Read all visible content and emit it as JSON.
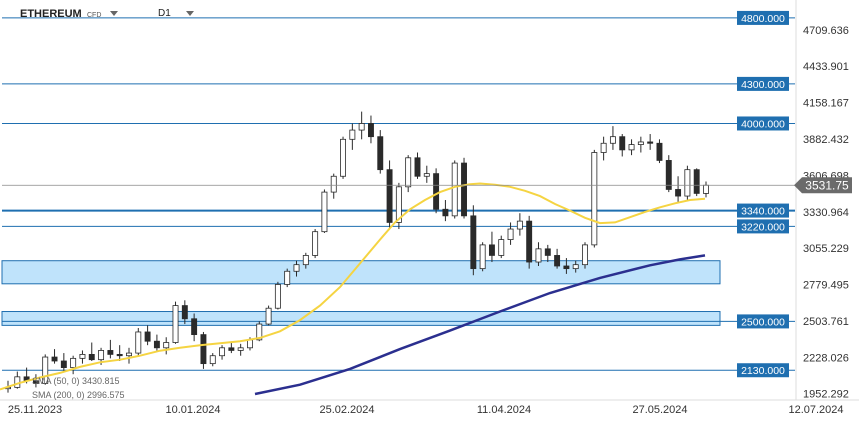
{
  "header": {
    "symbol": "ETHEREUM",
    "symbol_type": "CFD",
    "timeframe": "D1"
  },
  "indicators": [
    {
      "label": "SMA (50, 0) 3430.815",
      "color": "#f5d442"
    },
    {
      "label": "SMA (200, 0) 2996.575",
      "color": "#2b2f8f"
    }
  ],
  "colors": {
    "level_line": "#1f6fb0",
    "zone_fill": "#bfe3fb",
    "zone_border": "#1f6fb0",
    "level_label_bg": "#1f6fb0",
    "candle": "#2a2a2a",
    "price_badge": "#6b6b6b"
  },
  "chart_data": {
    "type": "candlestick",
    "x_ticks": [
      "25.11.2023",
      "10.01.2024",
      "25.02.2024",
      "11.04.2024",
      "27.05.2024",
      "12.07.2024"
    ],
    "y_ticks": [
      4709.636,
      4433.901,
      4158.167,
      3882.432,
      3606.698,
      3330.964,
      3055.229,
      2779.495,
      2503.761,
      2228.026,
      1952.292
    ],
    "ylim": [
      1912,
      4860
    ],
    "current_price": 3531.75,
    "levels": [
      4800,
      4300,
      4000,
      3340,
      3220,
      2500,
      2130
    ],
    "level_labels": [
      "4800.000",
      "4300.000",
      "4000.000",
      "3340.000",
      "3220.000",
      "2500.000",
      "2130.000"
    ],
    "zones": [
      [
        2785,
        2960
      ],
      [
        2470,
        2575
      ]
    ],
    "sma50": [
      [
        0,
        1985
      ],
      [
        20,
        2035
      ],
      [
        40,
        2075
      ],
      [
        60,
        2110
      ],
      [
        80,
        2155
      ],
      [
        100,
        2190
      ],
      [
        120,
        2210
      ],
      [
        140,
        2240
      ],
      [
        160,
        2278
      ],
      [
        180,
        2300
      ],
      [
        200,
        2320
      ],
      [
        220,
        2335
      ],
      [
        240,
        2350
      ],
      [
        260,
        2375
      ],
      [
        280,
        2425
      ],
      [
        300,
        2510
      ],
      [
        320,
        2620
      ],
      [
        340,
        2760
      ],
      [
        360,
        2940
      ],
      [
        380,
        3120
      ],
      [
        395,
        3250
      ],
      [
        410,
        3350
      ],
      [
        425,
        3420
      ],
      [
        440,
        3480
      ],
      [
        455,
        3520
      ],
      [
        470,
        3540
      ],
      [
        480,
        3545
      ],
      [
        495,
        3535
      ],
      [
        510,
        3520
      ],
      [
        525,
        3490
      ],
      [
        540,
        3450
      ],
      [
        555,
        3390
      ],
      [
        570,
        3340
      ],
      [
        585,
        3285
      ],
      [
        600,
        3245
      ],
      [
        615,
        3250
      ],
      [
        630,
        3290
      ],
      [
        645,
        3330
      ],
      [
        660,
        3365
      ],
      [
        675,
        3395
      ],
      [
        690,
        3420
      ],
      [
        705,
        3430
      ]
    ],
    "sma200": [
      [
        255,
        1950
      ],
      [
        300,
        2020
      ],
      [
        350,
        2140
      ],
      [
        400,
        2290
      ],
      [
        450,
        2430
      ],
      [
        500,
        2575
      ],
      [
        550,
        2715
      ],
      [
        600,
        2830
      ],
      [
        650,
        2925
      ],
      [
        680,
        2970
      ],
      [
        705,
        3000
      ]
    ],
    "series": [
      {
        "name": "ETHEREUM",
        "ohlc": [
          [
            1990,
            2050,
            1960,
            2000
          ],
          [
            2000,
            2120,
            1990,
            2080
          ],
          [
            2080,
            2150,
            2030,
            2050
          ],
          [
            2050,
            2100,
            2000,
            2030
          ],
          [
            2030,
            2250,
            2020,
            2230
          ],
          [
            2230,
            2290,
            2180,
            2200
          ],
          [
            2200,
            2260,
            2120,
            2150
          ],
          [
            2150,
            2240,
            2100,
            2220
          ],
          [
            2220,
            2280,
            2180,
            2250
          ],
          [
            2250,
            2340,
            2200,
            2210
          ],
          [
            2210,
            2300,
            2170,
            2280
          ],
          [
            2280,
            2360,
            2220,
            2250
          ],
          [
            2250,
            2320,
            2200,
            2240
          ],
          [
            2240,
            2300,
            2180,
            2260
          ],
          [
            2260,
            2450,
            2240,
            2420
          ],
          [
            2420,
            2470,
            2320,
            2350
          ],
          [
            2350,
            2400,
            2280,
            2300
          ],
          [
            2300,
            2380,
            2250,
            2340
          ],
          [
            2340,
            2650,
            2330,
            2620
          ],
          [
            2620,
            2660,
            2480,
            2520
          ],
          [
            2520,
            2560,
            2350,
            2400
          ],
          [
            2400,
            2420,
            2140,
            2180
          ],
          [
            2180,
            2260,
            2160,
            2240
          ],
          [
            2240,
            2320,
            2210,
            2300
          ],
          [
            2300,
            2340,
            2260,
            2280
          ],
          [
            2280,
            2330,
            2240,
            2300
          ],
          [
            2300,
            2380,
            2280,
            2360
          ],
          [
            2360,
            2500,
            2350,
            2480
          ],
          [
            2480,
            2620,
            2470,
            2600
          ],
          [
            2600,
            2800,
            2590,
            2780
          ],
          [
            2780,
            2900,
            2760,
            2880
          ],
          [
            2880,
            2960,
            2840,
            2930
          ],
          [
            2930,
            3020,
            2900,
            3000
          ],
          [
            3000,
            3200,
            2980,
            3180
          ],
          [
            3180,
            3500,
            3170,
            3480
          ],
          [
            3480,
            3620,
            3430,
            3600
          ],
          [
            3600,
            3900,
            3580,
            3880
          ],
          [
            3880,
            4000,
            3800,
            3950
          ],
          [
            3950,
            4090,
            3880,
            4000
          ],
          [
            4000,
            4060,
            3850,
            3900
          ],
          [
            3900,
            3950,
            3620,
            3650
          ],
          [
            3650,
            3720,
            3200,
            3250
          ],
          [
            3250,
            3550,
            3200,
            3520
          ],
          [
            3520,
            3760,
            3480,
            3740
          ],
          [
            3740,
            3780,
            3580,
            3600
          ],
          [
            3600,
            3680,
            3550,
            3620
          ],
          [
            3620,
            3660,
            3320,
            3350
          ],
          [
            3350,
            3420,
            3260,
            3300
          ],
          [
            3300,
            3720,
            3280,
            3700
          ],
          [
            3700,
            3740,
            3280,
            3300
          ],
          [
            3300,
            3380,
            2850,
            2900
          ],
          [
            2900,
            3100,
            2880,
            3080
          ],
          [
            3080,
            3180,
            2950,
            3000
          ],
          [
            3000,
            3150,
            2980,
            3120
          ],
          [
            3120,
            3250,
            3080,
            3200
          ],
          [
            3200,
            3320,
            3150,
            3260
          ],
          [
            3260,
            3300,
            2900,
            2950
          ],
          [
            2950,
            3100,
            2920,
            3050
          ],
          [
            3050,
            3080,
            2950,
            3000
          ],
          [
            3000,
            3050,
            2900,
            2920
          ],
          [
            2920,
            2980,
            2860,
            2900
          ],
          [
            2900,
            2960,
            2870,
            2930
          ],
          [
            2930,
            3100,
            2900,
            3080
          ],
          [
            3080,
            3800,
            3060,
            3780
          ],
          [
            3780,
            3900,
            3720,
            3850
          ],
          [
            3850,
            3980,
            3800,
            3900
          ],
          [
            3900,
            3920,
            3750,
            3800
          ],
          [
            3800,
            3880,
            3760,
            3840
          ],
          [
            3840,
            3900,
            3780,
            3860
          ],
          [
            3860,
            3920,
            3800,
            3850
          ],
          [
            3850,
            3880,
            3700,
            3720
          ],
          [
            3720,
            3760,
            3480,
            3500
          ],
          [
            3500,
            3600,
            3400,
            3450
          ],
          [
            3450,
            3680,
            3420,
            3650
          ],
          [
            3650,
            3660,
            3450,
            3470
          ],
          [
            3470,
            3560,
            3440,
            3531.75
          ]
        ]
      }
    ]
  }
}
